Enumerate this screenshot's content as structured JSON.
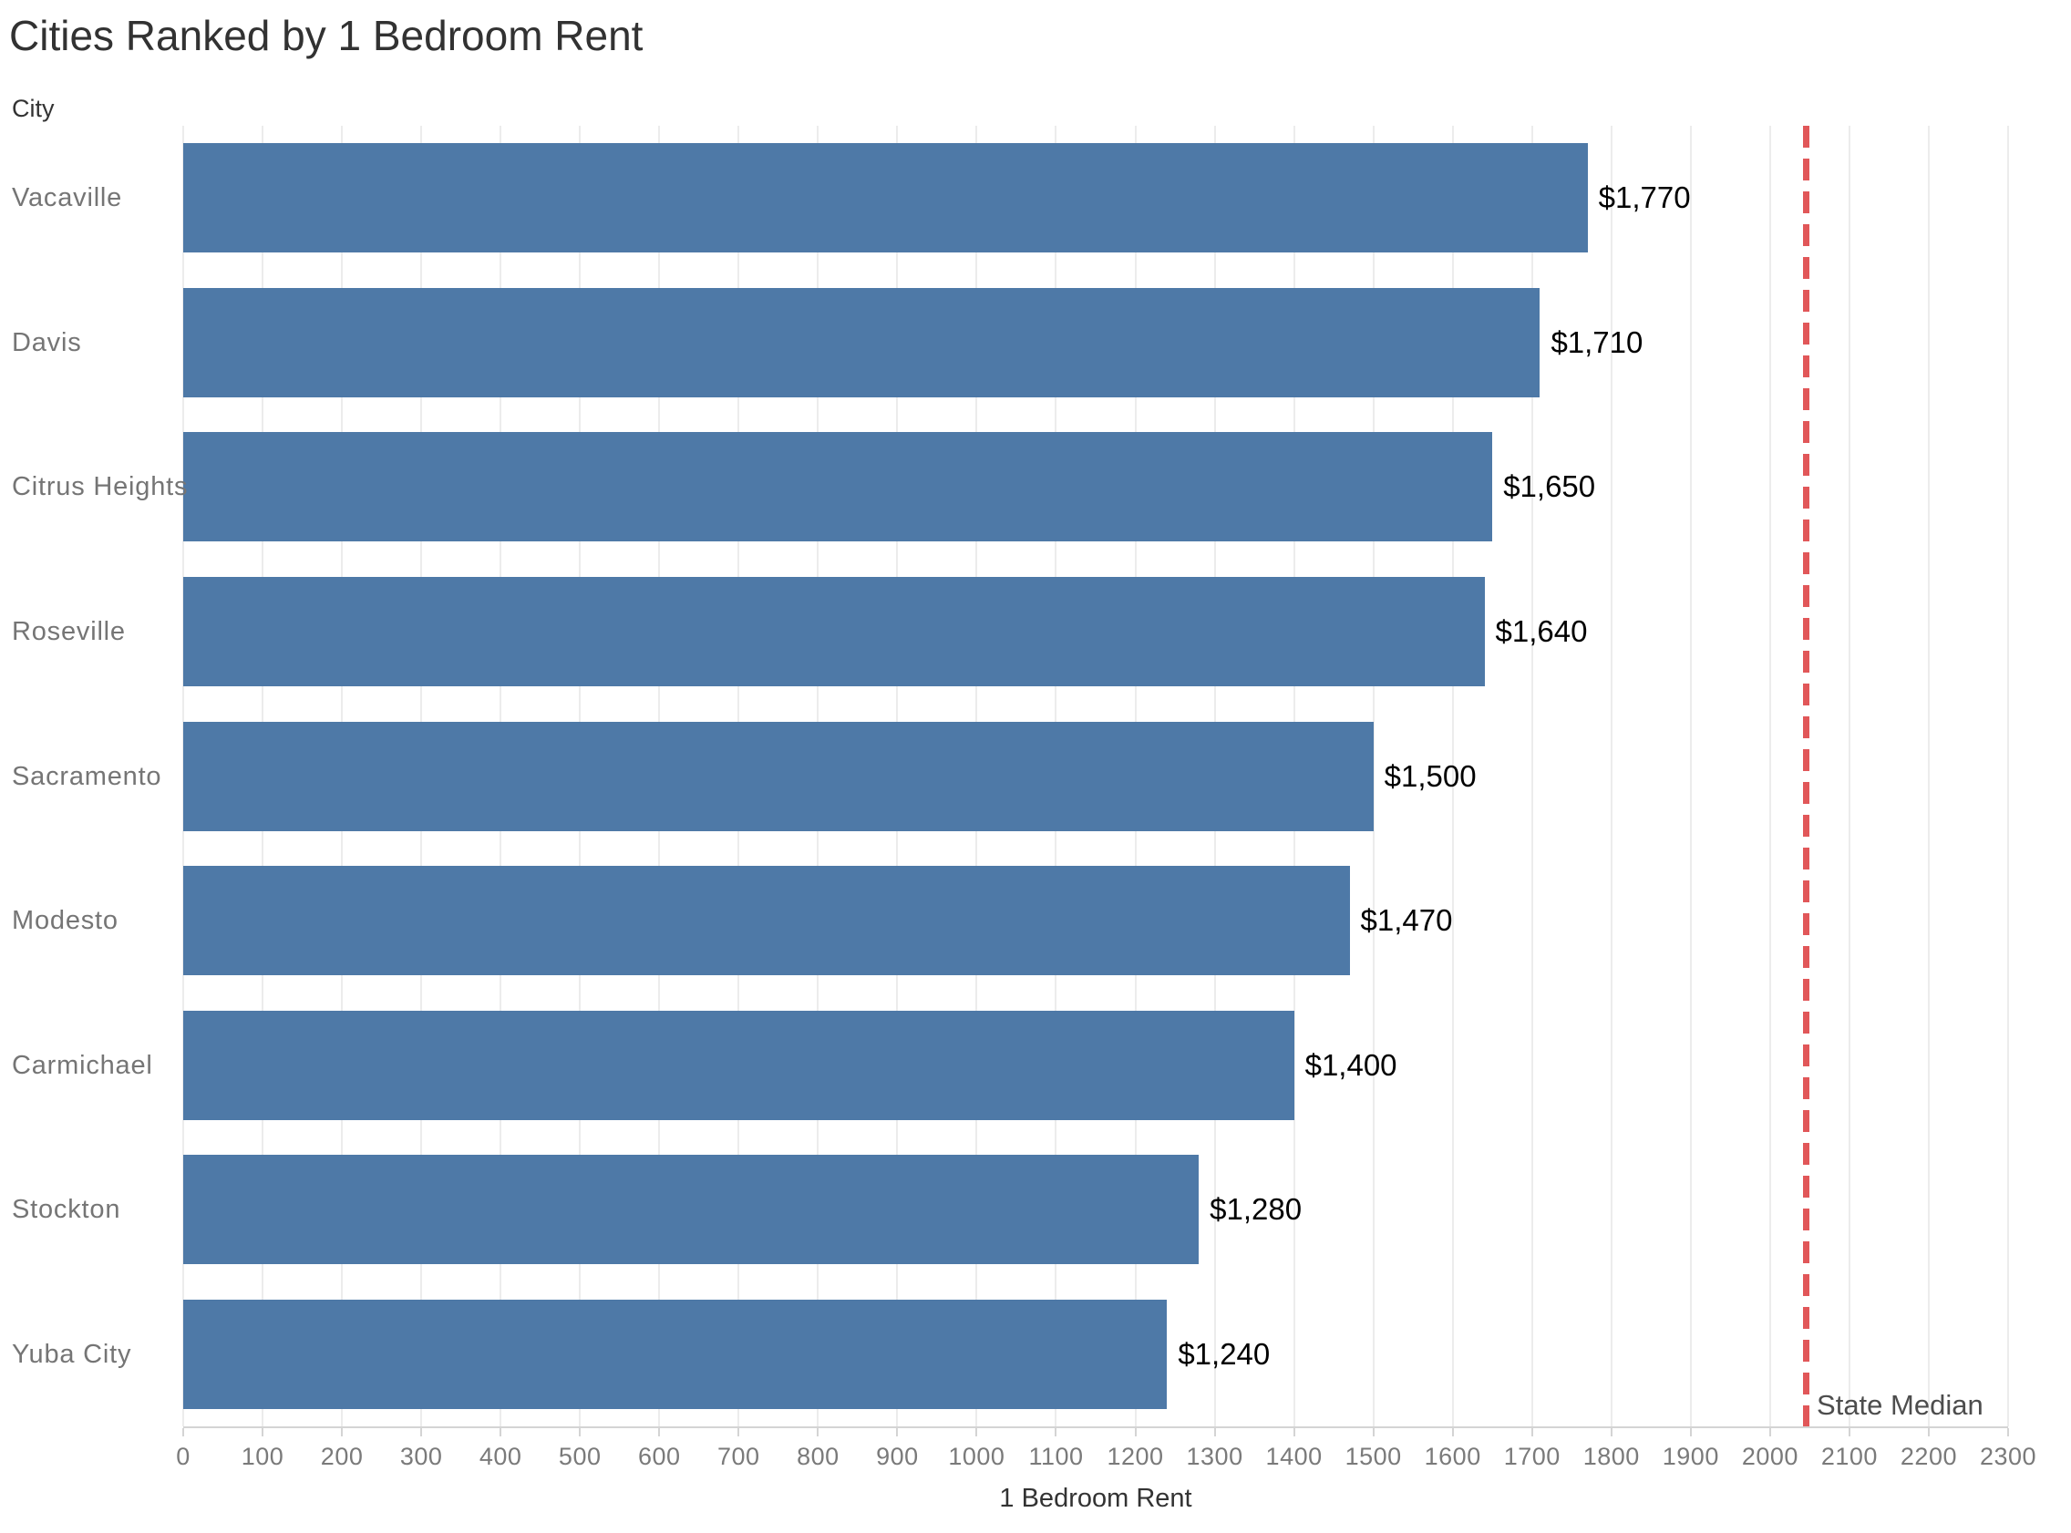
{
  "page": {
    "background": "#ffffff"
  },
  "chart_data": {
    "type": "bar",
    "orientation": "horizontal",
    "title": "Cities Ranked by 1 Bedroom Rent",
    "row_header": "City",
    "xlabel": "1 Bedroom Rent",
    "categories": [
      "Vacaville",
      "Davis",
      "Citrus Heights",
      "Roseville",
      "Sacramento",
      "Modesto",
      "Carmichael",
      "Stockton",
      "Yuba City"
    ],
    "values": [
      1770,
      1710,
      1650,
      1640,
      1500,
      1470,
      1400,
      1280,
      1240
    ],
    "value_labels": [
      "$1,770",
      "$1,710",
      "$1,650",
      "$1,640",
      "$1,500",
      "$1,470",
      "$1,400",
      "$1,280",
      "$1,240"
    ],
    "x_ticks": [
      0,
      100,
      200,
      300,
      400,
      500,
      600,
      700,
      800,
      900,
      1000,
      1100,
      1200,
      1300,
      1400,
      1500,
      1600,
      1700,
      1800,
      1900,
      2000,
      2100,
      2200,
      2300
    ],
    "xlim": [
      0,
      2300
    ],
    "grid": "vertical",
    "legend": "none",
    "bar_color": "#4e79a7",
    "reference_line": {
      "value": 2045,
      "label": "State Median",
      "color": "#e15759",
      "style": "dashed"
    }
  },
  "colors": {
    "bar": "#4e79a7",
    "reference_line": "#e15759",
    "gridline": "#ececec",
    "axis": "#d4d4d4",
    "title_text": "#323232",
    "category_text": "#757575",
    "tick_text": "#7a7a7a",
    "value_text": "#000000"
  }
}
